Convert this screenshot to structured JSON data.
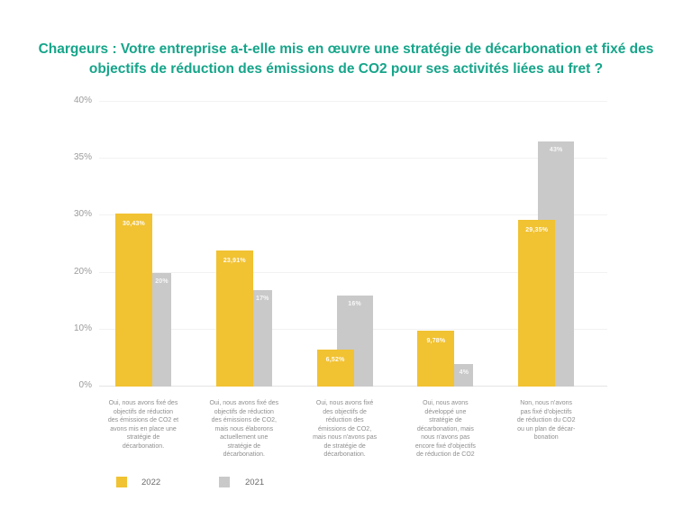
{
  "title": {
    "text": "Chargeurs : Votre entreprise a-t-elle mis en œuvre une stratégie de décarbonation et fixé des objectifs de réduction des émissions de CO2 pour ses activités liées au fret ?",
    "color": "#16A58A"
  },
  "chart_data": {
    "type": "bar",
    "title": "Chargeurs : Votre entreprise a-t-elle mis en œuvre une stratégie de décarbonation et fixé des objectifs de réduction des émissions de CO2 pour ses activités liées au fret ?",
    "categories": [
      "Oui, nous avons fixé des objectifs de réduction des émissions de CO2 et avons mis en place une stratégie de décarbonation.",
      "Oui, nous avons fixé des objectifs de réduction des émissions de CO2, mais nous élaborons actuellement une stratégie de décarbonation.",
      "Oui, nous avons fixé des objectifs de réduction des émissions de CO2, mais nous n'avons pas de stratégie de décarbonation.",
      "Oui, nous avons développé une stratégie de décarbonation, mais nous n'avons pas encore fixé d'objectifs de réduction de CO2",
      "Non, nous n'avons pas fixé d'objectifs de réduction du CO2 ou un plan de décarbonation"
    ],
    "categories_lines": [
      [
        "Oui, nous avons fixé des",
        "objectifs de réduction",
        "des émissions de CO2 et",
        "avons mis en place une",
        "stratégie de",
        "décarbonation."
      ],
      [
        "Oui, nous avons fixé des",
        "objectifs de réduction",
        "des émissions de CO2,",
        "mais nous élaborons",
        "actuellement une",
        "stratégie de",
        "décarbonation."
      ],
      [
        "Oui, nous avons fixé",
        "des objectifs de",
        "réduction des",
        "émissions de CO2,",
        "mais nous n'avons pas",
        "de stratégie de",
        "décarbonation."
      ],
      [
        "Oui, nous avons",
        "développé une",
        "stratégie de",
        "décarbonation, mais",
        "nous n'avons pas",
        "encore fixé d'objectifs",
        "de réduction de CO2"
      ],
      [
        "Non, nous n'avons",
        "pas fixé d'objectifs",
        "de réduction du CO2",
        "ou un plan de décar-",
        "bonation"
      ]
    ],
    "series": [
      {
        "name": "2022",
        "color": "#F1C232",
        "values": [
          30.43,
          23.91,
          6.52,
          9.78,
          29.35
        ],
        "value_labels": [
          "30,43%",
          "23,91%",
          "6,52%",
          "9,78%",
          "29,35%"
        ]
      },
      {
        "name": "2021",
        "color": "#C9C9C9",
        "values": [
          20,
          17,
          16,
          4,
          43
        ],
        "value_labels": [
          "20%",
          "17%",
          "16%",
          "4%",
          "43%"
        ]
      }
    ],
    "y_axis": {
      "tick_labels_bottom_up": [
        "0%",
        "10%",
        "20%",
        "30%",
        "35%",
        "40%"
      ],
      "grid": true
    },
    "legend": {
      "position": "bottom-left",
      "entries": [
        {
          "label": "2022",
          "color": "#F1C232"
        },
        {
          "label": "2021",
          "color": "#C9C9C9"
        }
      ]
    }
  }
}
